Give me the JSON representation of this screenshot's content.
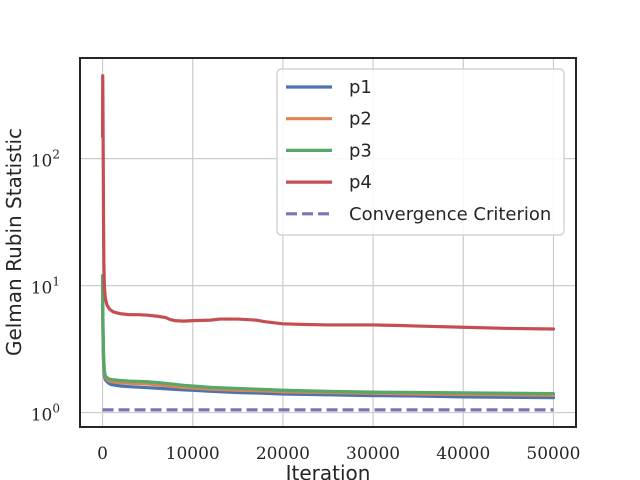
{
  "chart_data": {
    "type": "line",
    "xlabel": "Iteration",
    "ylabel": "Gelman Rubin Statistic",
    "yscale": "log",
    "xlim": [
      -2500,
      52500
    ],
    "ylim": [
      0.77,
      620
    ],
    "grid": true,
    "legend_position": "top-right",
    "x_ticks": [
      {
        "value": 0,
        "label": "0"
      },
      {
        "value": 10000,
        "label": "10000"
      },
      {
        "value": 20000,
        "label": "20000"
      },
      {
        "value": 30000,
        "label": "30000"
      },
      {
        "value": 40000,
        "label": "40000"
      },
      {
        "value": 50000,
        "label": "50000"
      }
    ],
    "y_ticks": [
      {
        "value": 1,
        "base": "10",
        "exp": "0"
      },
      {
        "value": 10,
        "base": "10",
        "exp": "1"
      },
      {
        "value": 100,
        "base": "10",
        "exp": "2"
      }
    ],
    "series": [
      {
        "name": "p1",
        "color": "#4c72b0",
        "x": [
          0,
          30,
          60,
          100,
          150,
          200,
          300,
          500,
          700,
          1000,
          2000,
          3000,
          5000,
          7000,
          9000,
          10000,
          12000,
          15000,
          18000,
          20000,
          25000,
          30000,
          35000,
          40000,
          45000,
          50000
        ],
        "y": [
          8,
          5,
          3.5,
          2.6,
          2.2,
          1.95,
          1.82,
          1.75,
          1.7,
          1.66,
          1.62,
          1.6,
          1.57,
          1.54,
          1.51,
          1.5,
          1.47,
          1.44,
          1.42,
          1.4,
          1.38,
          1.36,
          1.35,
          1.33,
          1.32,
          1.31
        ]
      },
      {
        "name": "p2",
        "color": "#dd8452",
        "x": [
          0,
          30,
          60,
          100,
          150,
          200,
          300,
          500,
          700,
          1000,
          2000,
          3000,
          5000,
          7000,
          9000,
          10000,
          12000,
          15000,
          18000,
          20000,
          25000,
          30000,
          35000,
          40000,
          45000,
          50000
        ],
        "y": [
          10,
          6,
          4,
          2.9,
          2.35,
          2.05,
          1.9,
          1.82,
          1.78,
          1.75,
          1.72,
          1.7,
          1.68,
          1.63,
          1.58,
          1.56,
          1.53,
          1.5,
          1.48,
          1.46,
          1.44,
          1.42,
          1.4,
          1.39,
          1.38,
          1.37
        ]
      },
      {
        "name": "p3",
        "color": "#55a868",
        "x": [
          0,
          30,
          60,
          100,
          150,
          200,
          300,
          500,
          700,
          1000,
          2000,
          3000,
          5000,
          7000,
          9000,
          10000,
          12000,
          15000,
          18000,
          20000,
          25000,
          30000,
          35000,
          40000,
          45000,
          50000
        ],
        "y": [
          12,
          7,
          4.5,
          3.1,
          2.5,
          2.15,
          1.95,
          1.88,
          1.84,
          1.82,
          1.79,
          1.77,
          1.75,
          1.7,
          1.64,
          1.62,
          1.58,
          1.55,
          1.52,
          1.5,
          1.47,
          1.45,
          1.44,
          1.43,
          1.42,
          1.41
        ]
      },
      {
        "name": "p4",
        "color": "#c44e52",
        "x": [
          0,
          20,
          40,
          60,
          80,
          100,
          120,
          150,
          200,
          300,
          500,
          800,
          1200,
          2000,
          3000,
          4000,
          5000,
          6000,
          7000,
          7500,
          8000,
          9000,
          10000,
          12000,
          13000,
          15000,
          17000,
          18000,
          20000,
          22000,
          25000,
          30000,
          33000,
          35000,
          40000,
          45000,
          50000
        ],
        "y": [
          150,
          450,
          300,
          160,
          90,
          45,
          25,
          15,
          10,
          8,
          7,
          6.5,
          6.2,
          6.0,
          5.9,
          5.9,
          5.85,
          5.75,
          5.6,
          5.4,
          5.3,
          5.25,
          5.3,
          5.35,
          5.45,
          5.45,
          5.35,
          5.2,
          5.0,
          4.95,
          4.9,
          4.9,
          4.85,
          4.8,
          4.7,
          4.6,
          4.55
        ]
      },
      {
        "name": "Convergence Criterion",
        "color": "#8172b3",
        "dashed": true,
        "x": [
          0,
          50000
        ],
        "y": [
          1.05,
          1.05
        ]
      }
    ]
  }
}
